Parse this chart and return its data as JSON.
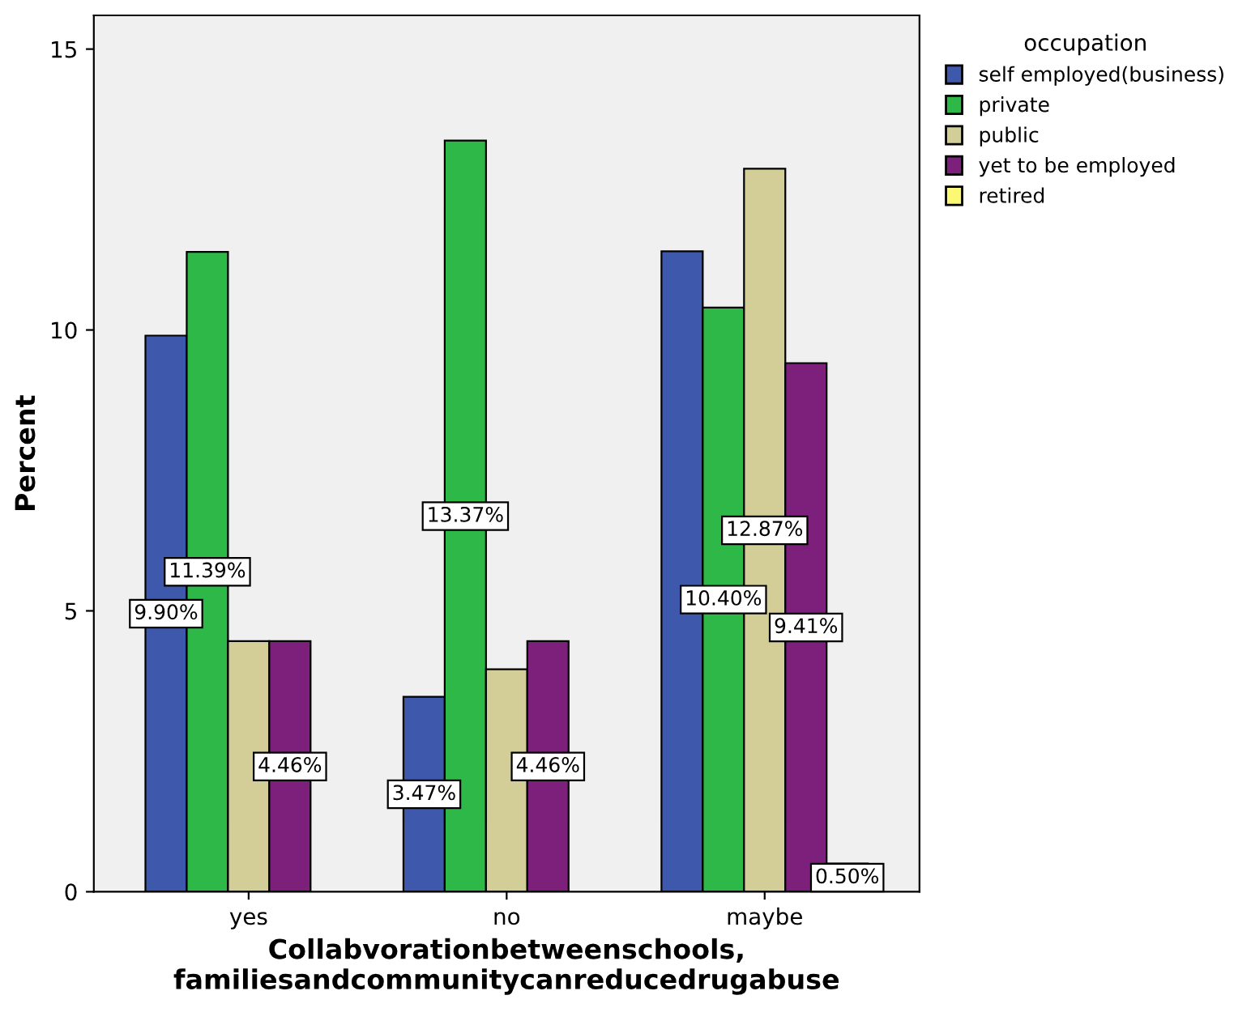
{
  "chart_data": {
    "type": "bar",
    "xlabel": "Collabvorationbetweenschools,\nfamiliesandcommunitycanreducedrugabuse",
    "ylabel": "Percent",
    "legend_title": "occupation",
    "categories": [
      "yes",
      "no",
      "maybe"
    ],
    "series": [
      {
        "name": "self employed(business)",
        "color": "#3e58ac",
        "values": [
          9.9,
          3.47,
          11.4
        ],
        "value_labels": [
          "9.90%",
          "3.47%",
          null
        ]
      },
      {
        "name": "private",
        "color": "#2eb848",
        "values": [
          11.39,
          13.37,
          10.4
        ],
        "value_labels": [
          "11.39%",
          "13.37%",
          "10.40%"
        ]
      },
      {
        "name": "public",
        "color": "#d3ce97",
        "values": [
          4.46,
          3.96,
          12.87
        ],
        "value_labels": [
          null,
          null,
          "12.87%"
        ]
      },
      {
        "name": "yet to be employed",
        "color": "#7c207b",
        "values": [
          4.46,
          4.46,
          9.41
        ],
        "value_labels": [
          "4.46%",
          "4.46%",
          "9.41%"
        ]
      },
      {
        "name": "retired",
        "color": "#fbf873",
        "values": [
          null,
          null,
          0.5
        ],
        "value_labels": [
          null,
          null,
          "0.50%"
        ]
      }
    ],
    "ylim": [
      0,
      15.6
    ],
    "yticks": [
      0,
      5,
      10,
      15
    ],
    "grid": false,
    "legend": "right"
  }
}
